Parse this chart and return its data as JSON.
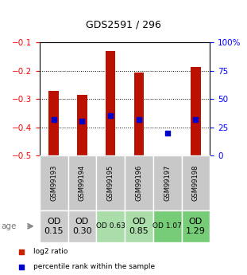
{
  "title": "GDS2591 / 296",
  "samples": [
    "GSM99193",
    "GSM99194",
    "GSM99195",
    "GSM99196",
    "GSM99197",
    "GSM99198"
  ],
  "log2_ratio": [
    -0.27,
    -0.285,
    -0.13,
    -0.205,
    -0.505,
    -0.185
  ],
  "percentile_rank": [
    32,
    30,
    35,
    32,
    20,
    32
  ],
  "age_labels": [
    "OD\n0.15",
    "OD\n0.30",
    "OD 0.63",
    "OD\n0.85",
    "OD 1.07",
    "OD\n1.29"
  ],
  "age_bg_colors": [
    "#cccccc",
    "#cccccc",
    "#aaddaa",
    "#aaddaa",
    "#77cc77",
    "#77cc77"
  ],
  "age_fontsize": [
    8,
    8,
    6.5,
    8,
    6.5,
    8
  ],
  "sample_bg_color": "#c8c8c8",
  "ylim_left": [
    -0.5,
    -0.1
  ],
  "ylim_right": [
    0,
    100
  ],
  "yticks_left": [
    -0.5,
    -0.4,
    -0.3,
    -0.2,
    -0.1
  ],
  "yticks_right": [
    0,
    25,
    50,
    75,
    100
  ],
  "bar_color": "#bb1100",
  "dot_color": "#0000cc",
  "bar_width": 0.35,
  "legend_items": [
    {
      "color": "#cc2200",
      "label": "log2 ratio"
    },
    {
      "color": "#0000cc",
      "label": "percentile rank within the sample"
    }
  ]
}
